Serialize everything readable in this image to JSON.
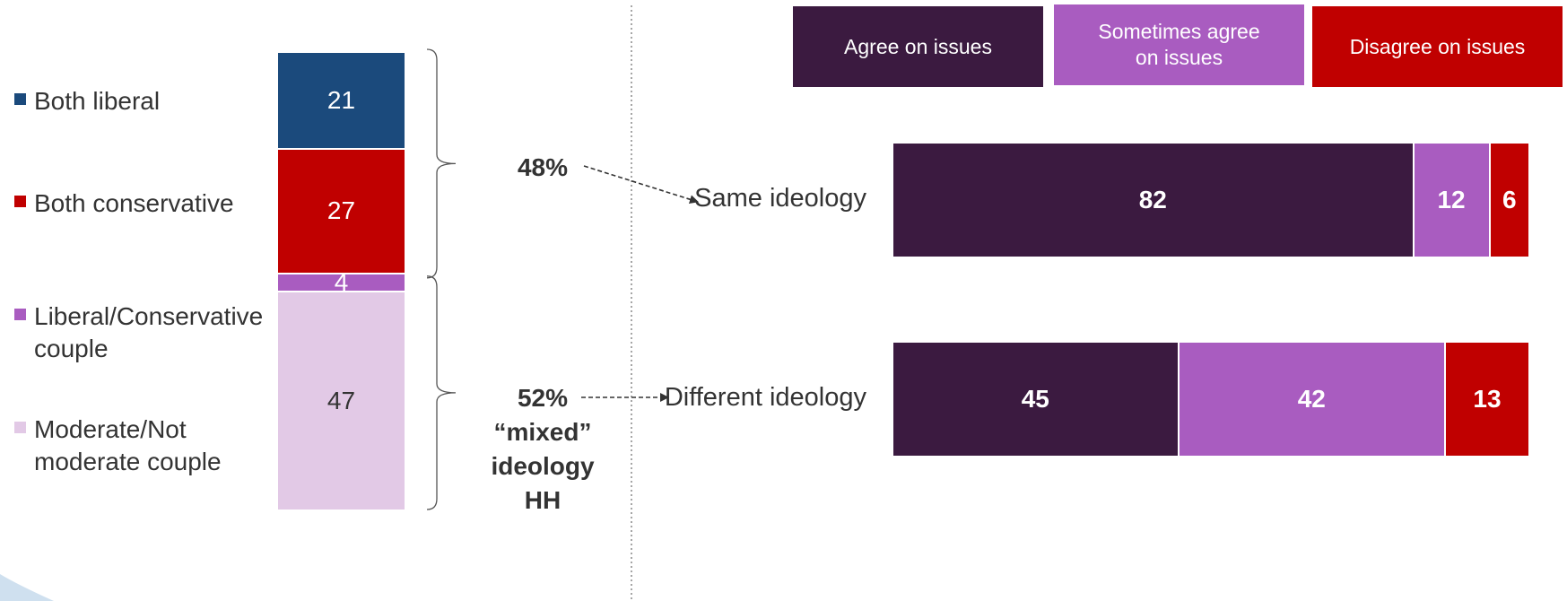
{
  "chart_data": [
    {
      "type": "bar",
      "orientation": "vertical-stacked",
      "categories": [
        ""
      ],
      "series": [
        {
          "name": "Both liberal",
          "values": [
            21
          ],
          "color": "#1b4a7c"
        },
        {
          "name": "Both conservative",
          "values": [
            27
          ],
          "color": "#c00000"
        },
        {
          "name": "Liberal/Conservative couple",
          "values": [
            4
          ],
          "color": "#a95cc0"
        },
        {
          "name": "Moderate/Not moderate couple",
          "values": [
            47
          ],
          "color": "#e2c9e6"
        }
      ],
      "value_label_colors": [
        "#ffffff",
        "#ffffff",
        "#ffffff",
        "#333333"
      ],
      "ylim": [
        0,
        99
      ],
      "legend": "left",
      "annotations": [
        {
          "id": "same",
          "text_lines": [
            "48%"
          ]
        },
        {
          "id": "mixed",
          "text_lines": [
            "52%",
            "“mixed”",
            "ideology",
            "HH"
          ]
        }
      ]
    },
    {
      "type": "bar",
      "orientation": "horizontal-stacked",
      "categories": [
        "Same ideology",
        "Different ideology"
      ],
      "series": [
        {
          "name": "Agree on issues",
          "values": [
            82,
            45
          ],
          "color": "#3b1a40"
        },
        {
          "name": "Sometimes agree on issues",
          "values": [
            12,
            42
          ],
          "color": "#a95cc0"
        },
        {
          "name": "Disagree on issues",
          "values": [
            6,
            13
          ],
          "color": "#c00000"
        }
      ],
      "xlim": [
        0,
        100
      ],
      "legend": "top"
    }
  ]
}
